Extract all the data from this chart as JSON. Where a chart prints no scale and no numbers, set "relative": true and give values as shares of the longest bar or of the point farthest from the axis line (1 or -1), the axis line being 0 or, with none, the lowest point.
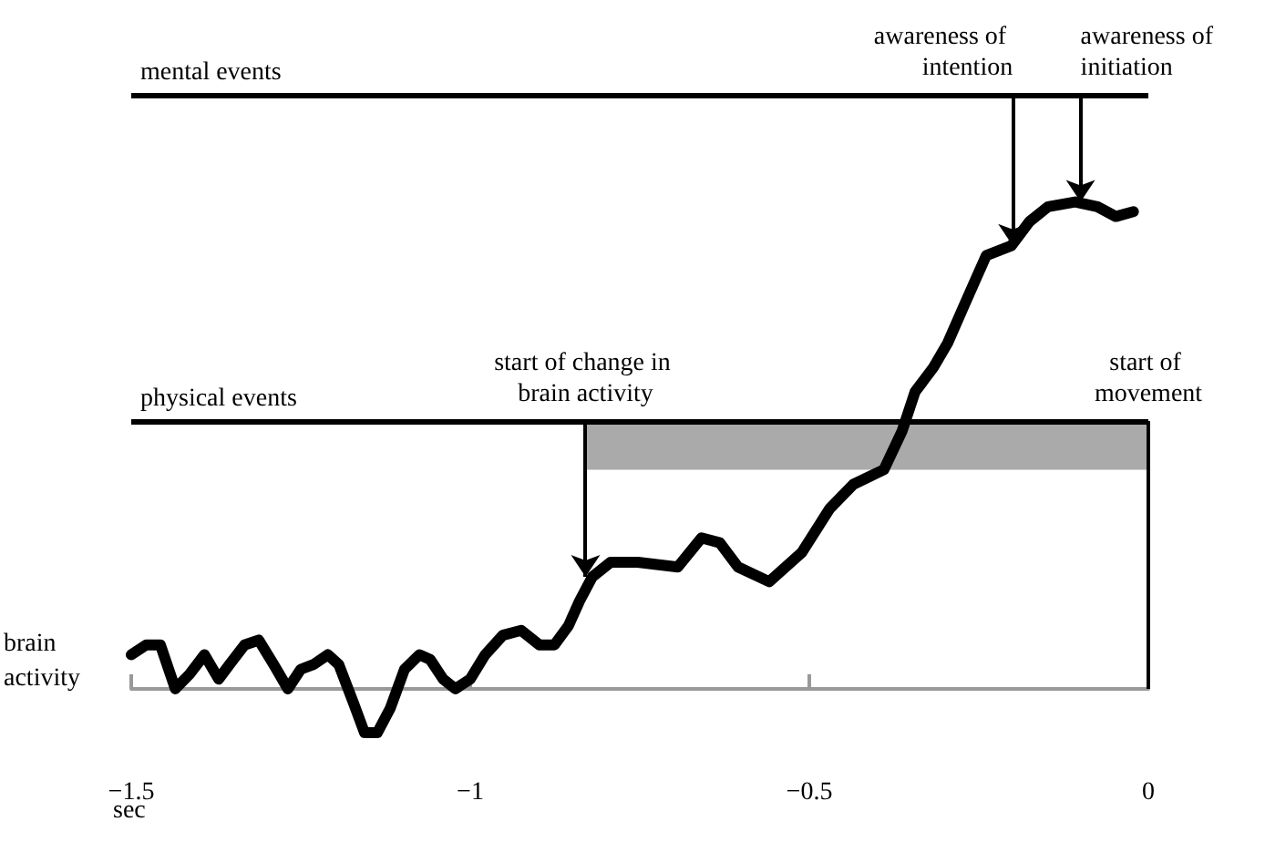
{
  "chart_data": {
    "type": "line",
    "relative": true,
    "xlabel": "sec",
    "ylabel": "brain activity",
    "xlim": [
      -1.5,
      0
    ],
    "xticks": [
      -1.5,
      -1,
      -0.5,
      0
    ],
    "marker": "none",
    "grid": false,
    "series": [
      {
        "color": "#000000",
        "x": [
          -1.5,
          -1.478,
          -1.457,
          -1.435,
          -1.414,
          -1.392,
          -1.371,
          -1.355,
          -1.333,
          -1.312,
          -1.29,
          -1.269,
          -1.25,
          -1.231,
          -1.21,
          -1.194,
          -1.172,
          -1.156,
          -1.137,
          -1.118,
          -1.097,
          -1.075,
          -1.059,
          -1.04,
          -1.022,
          -1,
          -0.978,
          -0.952,
          -0.925,
          -0.898,
          -0.876,
          -0.855,
          -0.839,
          -0.82,
          -0.793,
          -0.753,
          -0.694,
          -0.659,
          -0.632,
          -0.605,
          -0.559,
          -0.511,
          -0.47,
          -0.435,
          -0.39,
          -0.363,
          -0.344,
          -0.317,
          -0.296,
          -0.274,
          -0.255,
          -0.239,
          -0.202,
          -0.175,
          -0.148,
          -0.108,
          -0.075,
          -0.048,
          -0.022
        ],
        "values": [
          0.07,
          0.09,
          0.09,
          0,
          0.03,
          0.07,
          0.02,
          0.05,
          0.09,
          0.1,
          0.05,
          0,
          0.04,
          0.05,
          0.07,
          0.05,
          -0.03,
          -0.09,
          -0.09,
          -0.04,
          0.04,
          0.07,
          0.06,
          0.02,
          0,
          0.02,
          0.07,
          0.11,
          0.12,
          0.09,
          0.09,
          0.13,
          0.18,
          0.23,
          0.26,
          0.26,
          0.25,
          0.31,
          0.3,
          0.25,
          0.22,
          0.28,
          0.37,
          0.42,
          0.45,
          0.53,
          0.61,
          0.66,
          0.71,
          0.78,
          0.84,
          0.89,
          0.91,
          0.96,
          0.99,
          1,
          0.99,
          0.97,
          0.98
        ]
      }
    ],
    "ref_lines": [
      {
        "axis": "y",
        "value": 1.22,
        "label": "mental events",
        "color": "#000000"
      },
      {
        "axis": "y",
        "value": 0.55,
        "label": "physical events",
        "color": "#000000"
      },
      {
        "axis": "x",
        "value": 0,
        "label": "start of movement",
        "color": "#000000"
      }
    ],
    "bands": [
      {
        "axis": "x",
        "from": -0.83,
        "to": 0,
        "color": "#aaaaaa"
      }
    ],
    "annotations": [
      {
        "text": "start of change in brain activity",
        "x": -0.83,
        "y": 0.23
      },
      {
        "text": "awareness of intention",
        "x": -0.2,
        "y": 0.91
      },
      {
        "text": "awareness of initiation",
        "x": -0.1,
        "y": 1
      }
    ]
  }
}
